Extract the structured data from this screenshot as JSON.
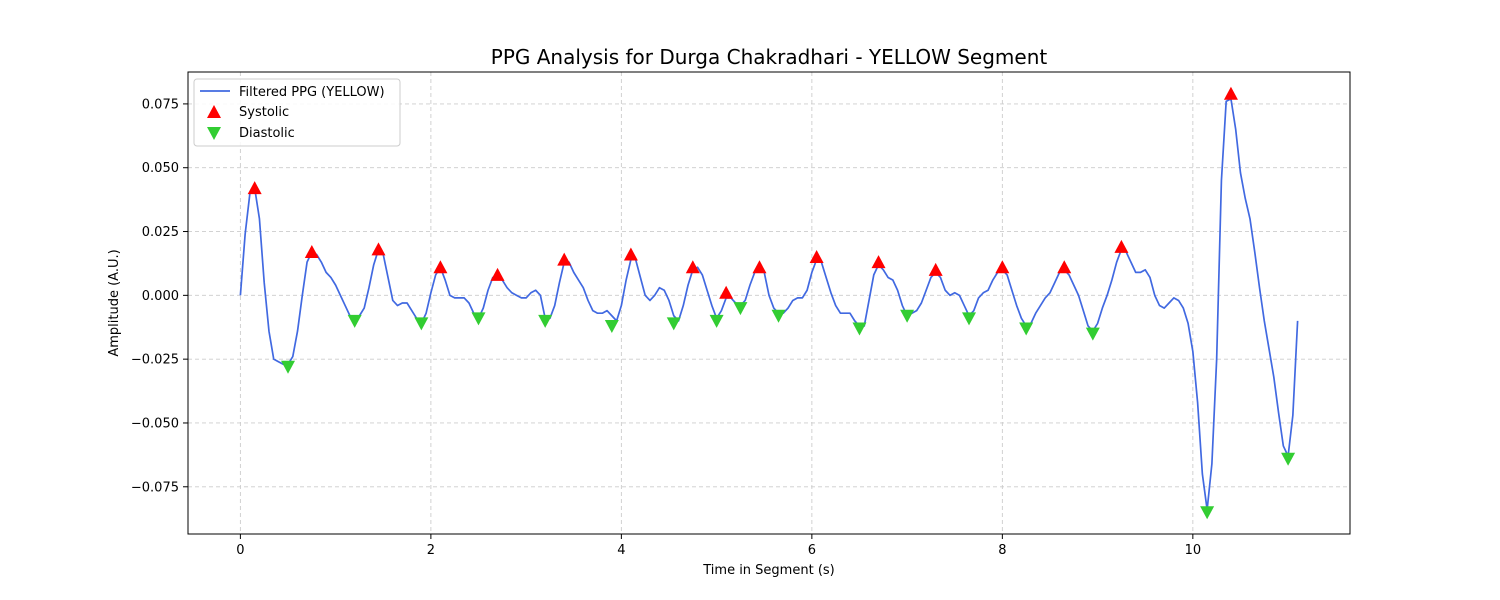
{
  "chart_data": {
    "type": "line",
    "title": "PPG Analysis for Durga Chakradhari - YELLOW Segment",
    "xlabel": "Time in Segment (s)",
    "ylabel": "Amplitude (A.U.)",
    "xlim": [
      -0.55,
      11.65
    ],
    "ylim": [
      -0.0935,
      0.0875
    ],
    "xticks": [
      0,
      2,
      4,
      6,
      8,
      10
    ],
    "xtick_labels": [
      "0",
      "2",
      "4",
      "6",
      "8",
      "10"
    ],
    "yticks": [
      -0.075,
      -0.05,
      -0.025,
      0.0,
      0.025,
      0.05,
      0.075
    ],
    "ytick_labels": [
      "−0.075",
      "−0.050",
      "−0.025",
      "0.000",
      "0.025",
      "0.050",
      "0.075"
    ],
    "grid": true,
    "legend_position": "top-left",
    "series": [
      {
        "name": "Filtered PPG (YELLOW)",
        "kind": "line",
        "color": "#4169e1",
        "points": [
          [
            0.0,
            0.0
          ],
          [
            0.05,
            0.024
          ],
          [
            0.1,
            0.04
          ],
          [
            0.15,
            0.042
          ],
          [
            0.2,
            0.03
          ],
          [
            0.25,
            0.005
          ],
          [
            0.3,
            -0.014
          ],
          [
            0.35,
            -0.025
          ],
          [
            0.4,
            -0.026
          ],
          [
            0.45,
            -0.027
          ],
          [
            0.5,
            -0.027
          ],
          [
            0.55,
            -0.024
          ],
          [
            0.6,
            -0.014
          ],
          [
            0.65,
            0.0
          ],
          [
            0.7,
            0.013
          ],
          [
            0.75,
            0.017
          ],
          [
            0.8,
            0.016
          ],
          [
            0.85,
            0.013
          ],
          [
            0.9,
            0.009
          ],
          [
            0.95,
            0.007
          ],
          [
            1.0,
            0.004
          ],
          [
            1.05,
            0.0
          ],
          [
            1.1,
            -0.004
          ],
          [
            1.15,
            -0.008
          ],
          [
            1.2,
            -0.01
          ],
          [
            1.25,
            -0.008
          ],
          [
            1.3,
            -0.005
          ],
          [
            1.35,
            0.003
          ],
          [
            1.4,
            0.012
          ],
          [
            1.45,
            0.018
          ],
          [
            1.5,
            0.016
          ],
          [
            1.55,
            0.007
          ],
          [
            1.6,
            -0.002
          ],
          [
            1.65,
            -0.004
          ],
          [
            1.7,
            -0.003
          ],
          [
            1.75,
            -0.003
          ],
          [
            1.8,
            -0.006
          ],
          [
            1.85,
            -0.009
          ],
          [
            1.9,
            -0.011
          ],
          [
            1.95,
            -0.007
          ],
          [
            2.0,
            0.001
          ],
          [
            2.05,
            0.008
          ],
          [
            2.1,
            0.011
          ],
          [
            2.15,
            0.006
          ],
          [
            2.2,
            0.0
          ],
          [
            2.25,
            -0.001
          ],
          [
            2.3,
            -0.001
          ],
          [
            2.35,
            -0.001
          ],
          [
            2.4,
            -0.003
          ],
          [
            2.45,
            -0.007
          ],
          [
            2.5,
            -0.009
          ],
          [
            2.55,
            -0.005
          ],
          [
            2.6,
            0.002
          ],
          [
            2.65,
            0.007
          ],
          [
            2.7,
            0.008
          ],
          [
            2.75,
            0.006
          ],
          [
            2.8,
            0.003
          ],
          [
            2.85,
            0.001
          ],
          [
            2.9,
            0.0
          ],
          [
            2.95,
            -0.001
          ],
          [
            3.0,
            -0.001
          ],
          [
            3.05,
            0.001
          ],
          [
            3.1,
            0.002
          ],
          [
            3.15,
            0.0
          ],
          [
            3.2,
            -0.009
          ],
          [
            3.25,
            -0.009
          ],
          [
            3.3,
            -0.004
          ],
          [
            3.35,
            0.005
          ],
          [
            3.4,
            0.013
          ],
          [
            3.45,
            0.013
          ],
          [
            3.5,
            0.009
          ],
          [
            3.55,
            0.006
          ],
          [
            3.6,
            0.003
          ],
          [
            3.65,
            -0.002
          ],
          [
            3.7,
            -0.006
          ],
          [
            3.75,
            -0.007
          ],
          [
            3.8,
            -0.007
          ],
          [
            3.85,
            -0.006
          ],
          [
            3.9,
            -0.008
          ],
          [
            3.95,
            -0.01
          ],
          [
            4.0,
            -0.004
          ],
          [
            4.05,
            0.006
          ],
          [
            4.1,
            0.014
          ],
          [
            4.15,
            0.014
          ],
          [
            4.2,
            0.007
          ],
          [
            4.25,
            0.0
          ],
          [
            4.3,
            -0.002
          ],
          [
            4.35,
            0.0
          ],
          [
            4.4,
            0.003
          ],
          [
            4.45,
            0.002
          ],
          [
            4.5,
            -0.002
          ],
          [
            4.55,
            -0.008
          ],
          [
            4.6,
            -0.01
          ],
          [
            4.65,
            -0.004
          ],
          [
            4.7,
            0.004
          ],
          [
            4.75,
            0.01
          ],
          [
            4.8,
            0.011
          ],
          [
            4.85,
            0.008
          ],
          [
            4.9,
            0.002
          ],
          [
            4.95,
            -0.004
          ],
          [
            5.0,
            -0.009
          ],
          [
            5.05,
            -0.006
          ],
          [
            5.1,
            -0.001
          ],
          [
            5.15,
            -0.001
          ],
          [
            5.2,
            -0.003
          ],
          [
            5.25,
            -0.004
          ],
          [
            5.3,
            -0.002
          ],
          [
            5.35,
            0.004
          ],
          [
            5.4,
            0.009
          ],
          [
            5.45,
            0.01
          ],
          [
            5.5,
            0.009
          ],
          [
            5.55,
            0.0
          ],
          [
            5.6,
            -0.005
          ],
          [
            5.65,
            -0.007
          ],
          [
            5.7,
            -0.007
          ],
          [
            5.75,
            -0.005
          ],
          [
            5.8,
            -0.002
          ],
          [
            5.85,
            -0.001
          ],
          [
            5.9,
            -0.001
          ],
          [
            5.95,
            0.002
          ],
          [
            6.0,
            0.009
          ],
          [
            6.05,
            0.014
          ],
          [
            6.1,
            0.013
          ],
          [
            6.15,
            0.007
          ],
          [
            6.2,
            0.001
          ],
          [
            6.25,
            -0.004
          ],
          [
            6.3,
            -0.007
          ],
          [
            6.35,
            -0.007
          ],
          [
            6.4,
            -0.007
          ],
          [
            6.45,
            -0.01
          ],
          [
            6.5,
            -0.012
          ],
          [
            6.55,
            -0.012
          ],
          [
            6.6,
            -0.002
          ],
          [
            6.65,
            0.008
          ],
          [
            6.7,
            0.012
          ],
          [
            6.75,
            0.01
          ],
          [
            6.8,
            0.007
          ],
          [
            6.85,
            0.006
          ],
          [
            6.9,
            0.002
          ],
          [
            6.95,
            -0.004
          ],
          [
            7.0,
            -0.008
          ],
          [
            7.05,
            -0.007
          ],
          [
            7.1,
            -0.006
          ],
          [
            7.15,
            -0.003
          ],
          [
            7.2,
            0.002
          ],
          [
            7.25,
            0.007
          ],
          [
            7.3,
            0.009
          ],
          [
            7.35,
            0.007
          ],
          [
            7.4,
            0.002
          ],
          [
            7.45,
            0.0
          ],
          [
            7.5,
            0.001
          ],
          [
            7.55,
            0.0
          ],
          [
            7.6,
            -0.004
          ],
          [
            7.65,
            -0.008
          ],
          [
            7.7,
            -0.006
          ],
          [
            7.75,
            -0.001
          ],
          [
            7.8,
            0.001
          ],
          [
            7.85,
            0.002
          ],
          [
            7.9,
            0.006
          ],
          [
            7.95,
            0.009
          ],
          [
            8.0,
            0.01
          ],
          [
            8.05,
            0.008
          ],
          [
            8.1,
            0.002
          ],
          [
            8.15,
            -0.004
          ],
          [
            8.2,
            -0.009
          ],
          [
            8.25,
            -0.012
          ],
          [
            8.3,
            -0.011
          ],
          [
            8.35,
            -0.007
          ],
          [
            8.4,
            -0.004
          ],
          [
            8.45,
            -0.001
          ],
          [
            8.5,
            0.001
          ],
          [
            8.55,
            0.005
          ],
          [
            8.6,
            0.009
          ],
          [
            8.65,
            0.01
          ],
          [
            8.7,
            0.008
          ],
          [
            8.75,
            0.004
          ],
          [
            8.8,
            0.0
          ],
          [
            8.85,
            -0.006
          ],
          [
            8.9,
            -0.012
          ],
          [
            8.95,
            -0.014
          ],
          [
            9.0,
            -0.011
          ],
          [
            9.05,
            -0.005
          ],
          [
            9.1,
            0.0
          ],
          [
            9.15,
            0.006
          ],
          [
            9.2,
            0.013
          ],
          [
            9.25,
            0.018
          ],
          [
            9.3,
            0.017
          ],
          [
            9.35,
            0.013
          ],
          [
            9.4,
            0.009
          ],
          [
            9.45,
            0.009
          ],
          [
            9.5,
            0.01
          ],
          [
            9.55,
            0.007
          ],
          [
            9.6,
            0.0
          ],
          [
            9.65,
            -0.004
          ],
          [
            9.7,
            -0.005
          ],
          [
            9.75,
            -0.003
          ],
          [
            9.8,
            -0.001
          ],
          [
            9.85,
            -0.002
          ],
          [
            9.9,
            -0.005
          ],
          [
            9.95,
            -0.011
          ],
          [
            10.0,
            -0.022
          ],
          [
            10.05,
            -0.042
          ],
          [
            10.1,
            -0.07
          ],
          [
            10.15,
            -0.084
          ],
          [
            10.2,
            -0.066
          ],
          [
            10.25,
            -0.025
          ],
          [
            10.3,
            0.045
          ],
          [
            10.35,
            0.076
          ],
          [
            10.4,
            0.077
          ],
          [
            10.45,
            0.065
          ],
          [
            10.5,
            0.048
          ],
          [
            10.55,
            0.038
          ],
          [
            10.6,
            0.03
          ],
          [
            10.65,
            0.017
          ],
          [
            10.7,
            0.003
          ],
          [
            10.75,
            -0.01
          ],
          [
            10.8,
            -0.021
          ],
          [
            10.85,
            -0.032
          ],
          [
            10.9,
            -0.046
          ],
          [
            10.95,
            -0.059
          ],
          [
            11.0,
            -0.063
          ],
          [
            11.05,
            -0.047
          ],
          [
            11.1,
            -0.01
          ]
        ]
      },
      {
        "name": "Systolic",
        "kind": "marker",
        "marker": "triangle-up",
        "color": "#ff0000",
        "points": [
          [
            0.15,
            0.042
          ],
          [
            0.75,
            0.017
          ],
          [
            1.45,
            0.018
          ],
          [
            2.1,
            0.011
          ],
          [
            2.7,
            0.008
          ],
          [
            3.4,
            0.014
          ],
          [
            4.1,
            0.016
          ],
          [
            4.75,
            0.011
          ],
          [
            5.1,
            0.001
          ],
          [
            5.45,
            0.011
          ],
          [
            6.05,
            0.015
          ],
          [
            6.7,
            0.013
          ],
          [
            7.3,
            0.01
          ],
          [
            8.0,
            0.011
          ],
          [
            8.65,
            0.011
          ],
          [
            9.25,
            0.019
          ],
          [
            10.4,
            0.079
          ]
        ]
      },
      {
        "name": "Diastolic",
        "kind": "marker",
        "marker": "triangle-down",
        "color": "#32cd32",
        "points": [
          [
            0.5,
            -0.028
          ],
          [
            1.2,
            -0.01
          ],
          [
            1.9,
            -0.011
          ],
          [
            2.5,
            -0.009
          ],
          [
            3.2,
            -0.01
          ],
          [
            3.9,
            -0.012
          ],
          [
            4.55,
            -0.011
          ],
          [
            5.0,
            -0.01
          ],
          [
            5.25,
            -0.005
          ],
          [
            5.65,
            -0.008
          ],
          [
            6.5,
            -0.013
          ],
          [
            7.0,
            -0.008
          ],
          [
            7.65,
            -0.009
          ],
          [
            8.25,
            -0.013
          ],
          [
            8.95,
            -0.015
          ],
          [
            10.15,
            -0.085
          ],
          [
            11.0,
            -0.064
          ]
        ]
      }
    ]
  }
}
